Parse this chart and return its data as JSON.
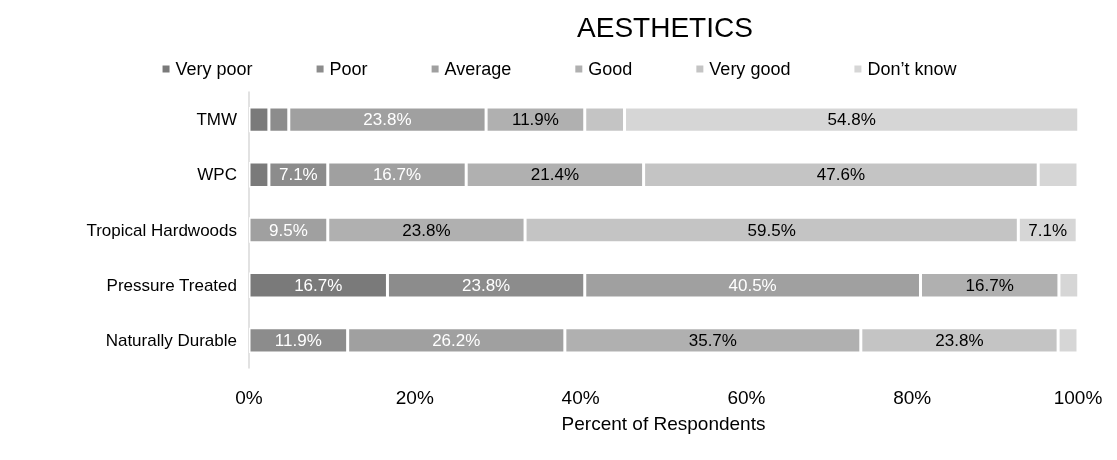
{
  "chart_data": {
    "type": "bar",
    "orientation": "horizontal",
    "stacked": true,
    "title": "AESTHETICS",
    "xlabel": "Percent of Respondents",
    "categories": [
      "TMW",
      "WPC",
      "Tropical Hardwoods",
      "Pressure Treated",
      "Naturally Durable"
    ],
    "series": [
      {
        "name": "Very poor",
        "color": "#7a7a7a",
        "values": [
          2.4,
          2.4,
          null,
          16.7,
          null
        ],
        "value_labels": [
          null,
          null,
          null,
          "16.7%",
          null
        ]
      },
      {
        "name": "Poor",
        "color": "#8c8c8c",
        "values": [
          2.4,
          7.1,
          null,
          23.8,
          11.9
        ],
        "value_labels": [
          null,
          "7.1%",
          null,
          "23.8%",
          "11.9%"
        ]
      },
      {
        "name": "Average",
        "color": "#a0a0a0",
        "values": [
          23.8,
          16.7,
          9.5,
          40.5,
          26.2
        ],
        "value_labels": [
          "23.8%",
          "16.7%",
          "9.5%",
          "40.5%",
          "26.2%"
        ]
      },
      {
        "name": "Good",
        "color": "#b0b0b0",
        "values": [
          11.9,
          21.4,
          23.8,
          16.7,
          35.7
        ],
        "value_labels": [
          "11.9%",
          "21.4%",
          "23.8%",
          "16.7%",
          "35.7%"
        ]
      },
      {
        "name": "Very good",
        "color": "#c4c4c4",
        "values": [
          4.8,
          47.6,
          59.5,
          null,
          23.8
        ],
        "value_labels": [
          null,
          "47.6%",
          "59.5%",
          null,
          "23.8%"
        ]
      },
      {
        "name": "Don’t know",
        "color": "#d6d6d6",
        "values": [
          54.8,
          4.8,
          7.1,
          2.4,
          2.4
        ],
        "value_labels": [
          "54.8%",
          null,
          "7.1%",
          null,
          null
        ]
      }
    ],
    "xlim": [
      0,
      100
    ],
    "xticks": [
      {
        "value": 0,
        "label": "0%"
      },
      {
        "value": 20,
        "label": "20%"
      },
      {
        "value": 40,
        "label": "40%"
      },
      {
        "value": 60,
        "label": "60%"
      },
      {
        "value": 80,
        "label": "80%"
      },
      {
        "value": 100,
        "label": "100%"
      }
    ],
    "grid": false,
    "legend": "top"
  }
}
